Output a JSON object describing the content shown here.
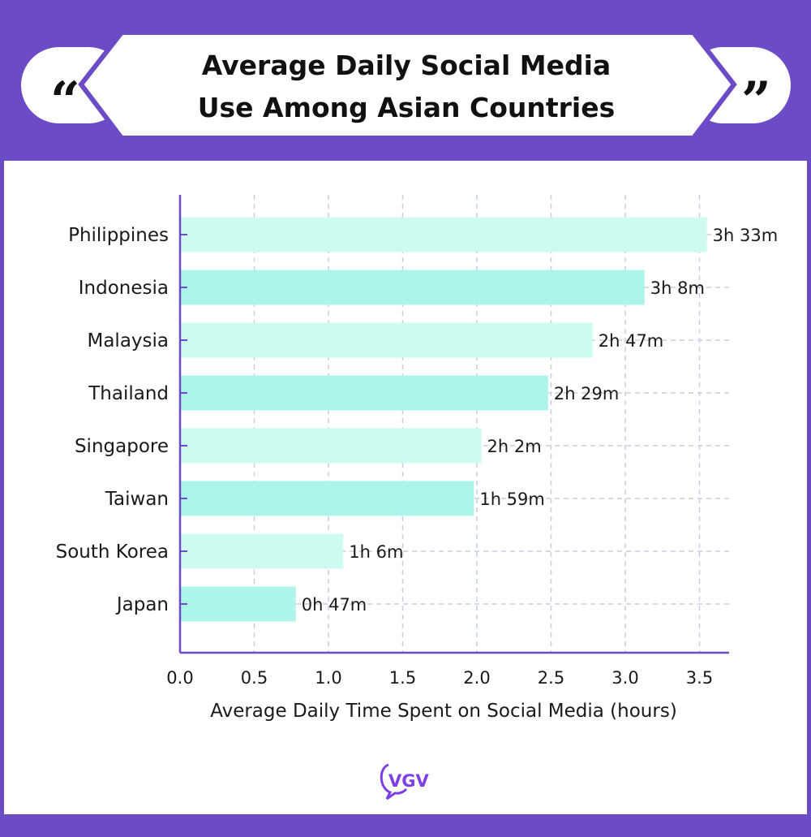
{
  "header": {
    "title_line1": "Average Daily Social Media",
    "title_line2": "Use Among Asian Countries",
    "open_quote": "“",
    "close_quote": "”"
  },
  "logo": {
    "text": "VGV",
    "icon": "vgv-logo-icon"
  },
  "colors": {
    "background": "#6b4bc6",
    "bar_light": "#cdfaf1",
    "bar_dark": "#adf5ea",
    "axis": "#6b4bc6",
    "grid": "#c9cde0"
  },
  "chart_data": {
    "type": "bar",
    "orientation": "horizontal",
    "categories": [
      "Philippines",
      "Indonesia",
      "Malaysia",
      "Thailand",
      "Singapore",
      "Taiwan",
      "South Korea",
      "Japan"
    ],
    "values": [
      3.55,
      3.13,
      2.78,
      2.48,
      2.03,
      1.98,
      1.1,
      0.78
    ],
    "labels": [
      "3h 33m",
      "3h 8m",
      "2h 47m",
      "2h 29m",
      "2h 2m",
      "1h 59m",
      "1h 6m",
      "0h 47m"
    ],
    "xticks": [
      "0.0",
      "0.5",
      "1.0",
      "1.5",
      "2.0",
      "2.5",
      "3.0",
      "3.5"
    ],
    "xlim": [
      0,
      3.7
    ],
    "xlabel": "Average Daily Time Spent on Social Media (hours)",
    "ylabel": "",
    "grid": true
  }
}
